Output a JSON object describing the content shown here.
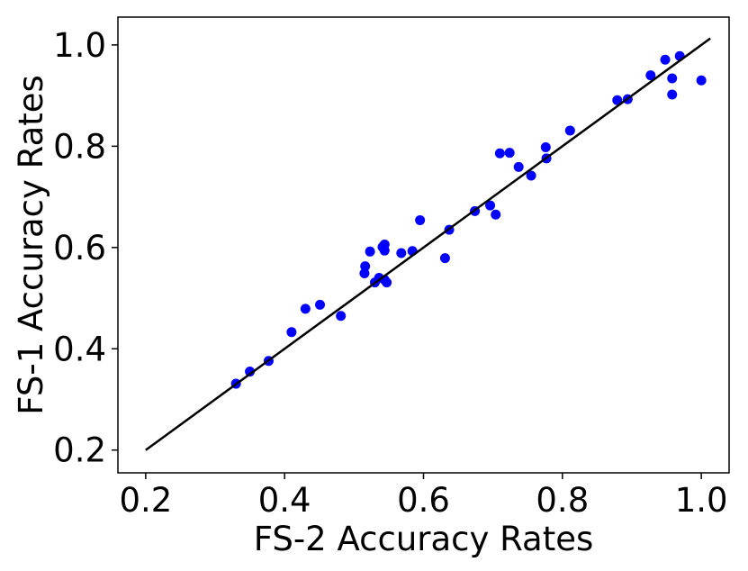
{
  "chart_data": {
    "type": "scatter",
    "title": "",
    "xlabel": "FS-2 Accuracy Rates",
    "ylabel": "FS-1 Accuracy Rates",
    "xlim": [
      0.16,
      1.04
    ],
    "ylim": [
      0.155,
      1.055
    ],
    "x_ticks": [
      0.2,
      0.4,
      0.6,
      0.8,
      1.0
    ],
    "x_tick_labels": [
      "0.2",
      "0.4",
      "0.6",
      "0.8",
      "1.0"
    ],
    "y_ticks": [
      0.2,
      0.4,
      0.6,
      0.8,
      1.0
    ],
    "y_tick_labels": [
      "0.2",
      "0.4",
      "0.6",
      "0.8",
      "1.0"
    ],
    "grid": false,
    "legend": null,
    "point_color": "#0000ff",
    "line_color": "#000000",
    "reference_line": {
      "x": [
        0.2,
        1.013
      ],
      "y": [
        0.2,
        1.013
      ]
    },
    "series": [
      {
        "points": [
          {
            "x": 0.33,
            "y": 0.331
          },
          {
            "x": 0.35,
            "y": 0.355
          },
          {
            "x": 0.377,
            "y": 0.376
          },
          {
            "x": 0.41,
            "y": 0.433
          },
          {
            "x": 0.43,
            "y": 0.479
          },
          {
            "x": 0.451,
            "y": 0.487
          },
          {
            "x": 0.481,
            "y": 0.465
          },
          {
            "x": 0.515,
            "y": 0.549
          },
          {
            "x": 0.516,
            "y": 0.563
          },
          {
            "x": 0.523,
            "y": 0.592
          },
          {
            "x": 0.53,
            "y": 0.531
          },
          {
            "x": 0.536,
            "y": 0.54
          },
          {
            "x": 0.541,
            "y": 0.601
          },
          {
            "x": 0.544,
            "y": 0.606
          },
          {
            "x": 0.544,
            "y": 0.594
          },
          {
            "x": 0.544,
            "y": 0.536
          },
          {
            "x": 0.547,
            "y": 0.531
          },
          {
            "x": 0.568,
            "y": 0.589
          },
          {
            "x": 0.584,
            "y": 0.593
          },
          {
            "x": 0.595,
            "y": 0.654
          },
          {
            "x": 0.631,
            "y": 0.579
          },
          {
            "x": 0.637,
            "y": 0.635
          },
          {
            "x": 0.674,
            "y": 0.672
          },
          {
            "x": 0.696,
            "y": 0.683
          },
          {
            "x": 0.704,
            "y": 0.665
          },
          {
            "x": 0.71,
            "y": 0.786
          },
          {
            "x": 0.724,
            "y": 0.787
          },
          {
            "x": 0.737,
            "y": 0.759
          },
          {
            "x": 0.755,
            "y": 0.742
          },
          {
            "x": 0.776,
            "y": 0.798
          },
          {
            "x": 0.777,
            "y": 0.776
          },
          {
            "x": 0.811,
            "y": 0.831
          },
          {
            "x": 0.879,
            "y": 0.891
          },
          {
            "x": 0.894,
            "y": 0.893
          },
          {
            "x": 0.927,
            "y": 0.94
          },
          {
            "x": 0.948,
            "y": 0.971
          },
          {
            "x": 0.958,
            "y": 0.934
          },
          {
            "x": 0.958,
            "y": 0.902
          },
          {
            "x": 0.969,
            "y": 0.978
          },
          {
            "x": 1.0,
            "y": 0.93
          }
        ]
      }
    ]
  }
}
